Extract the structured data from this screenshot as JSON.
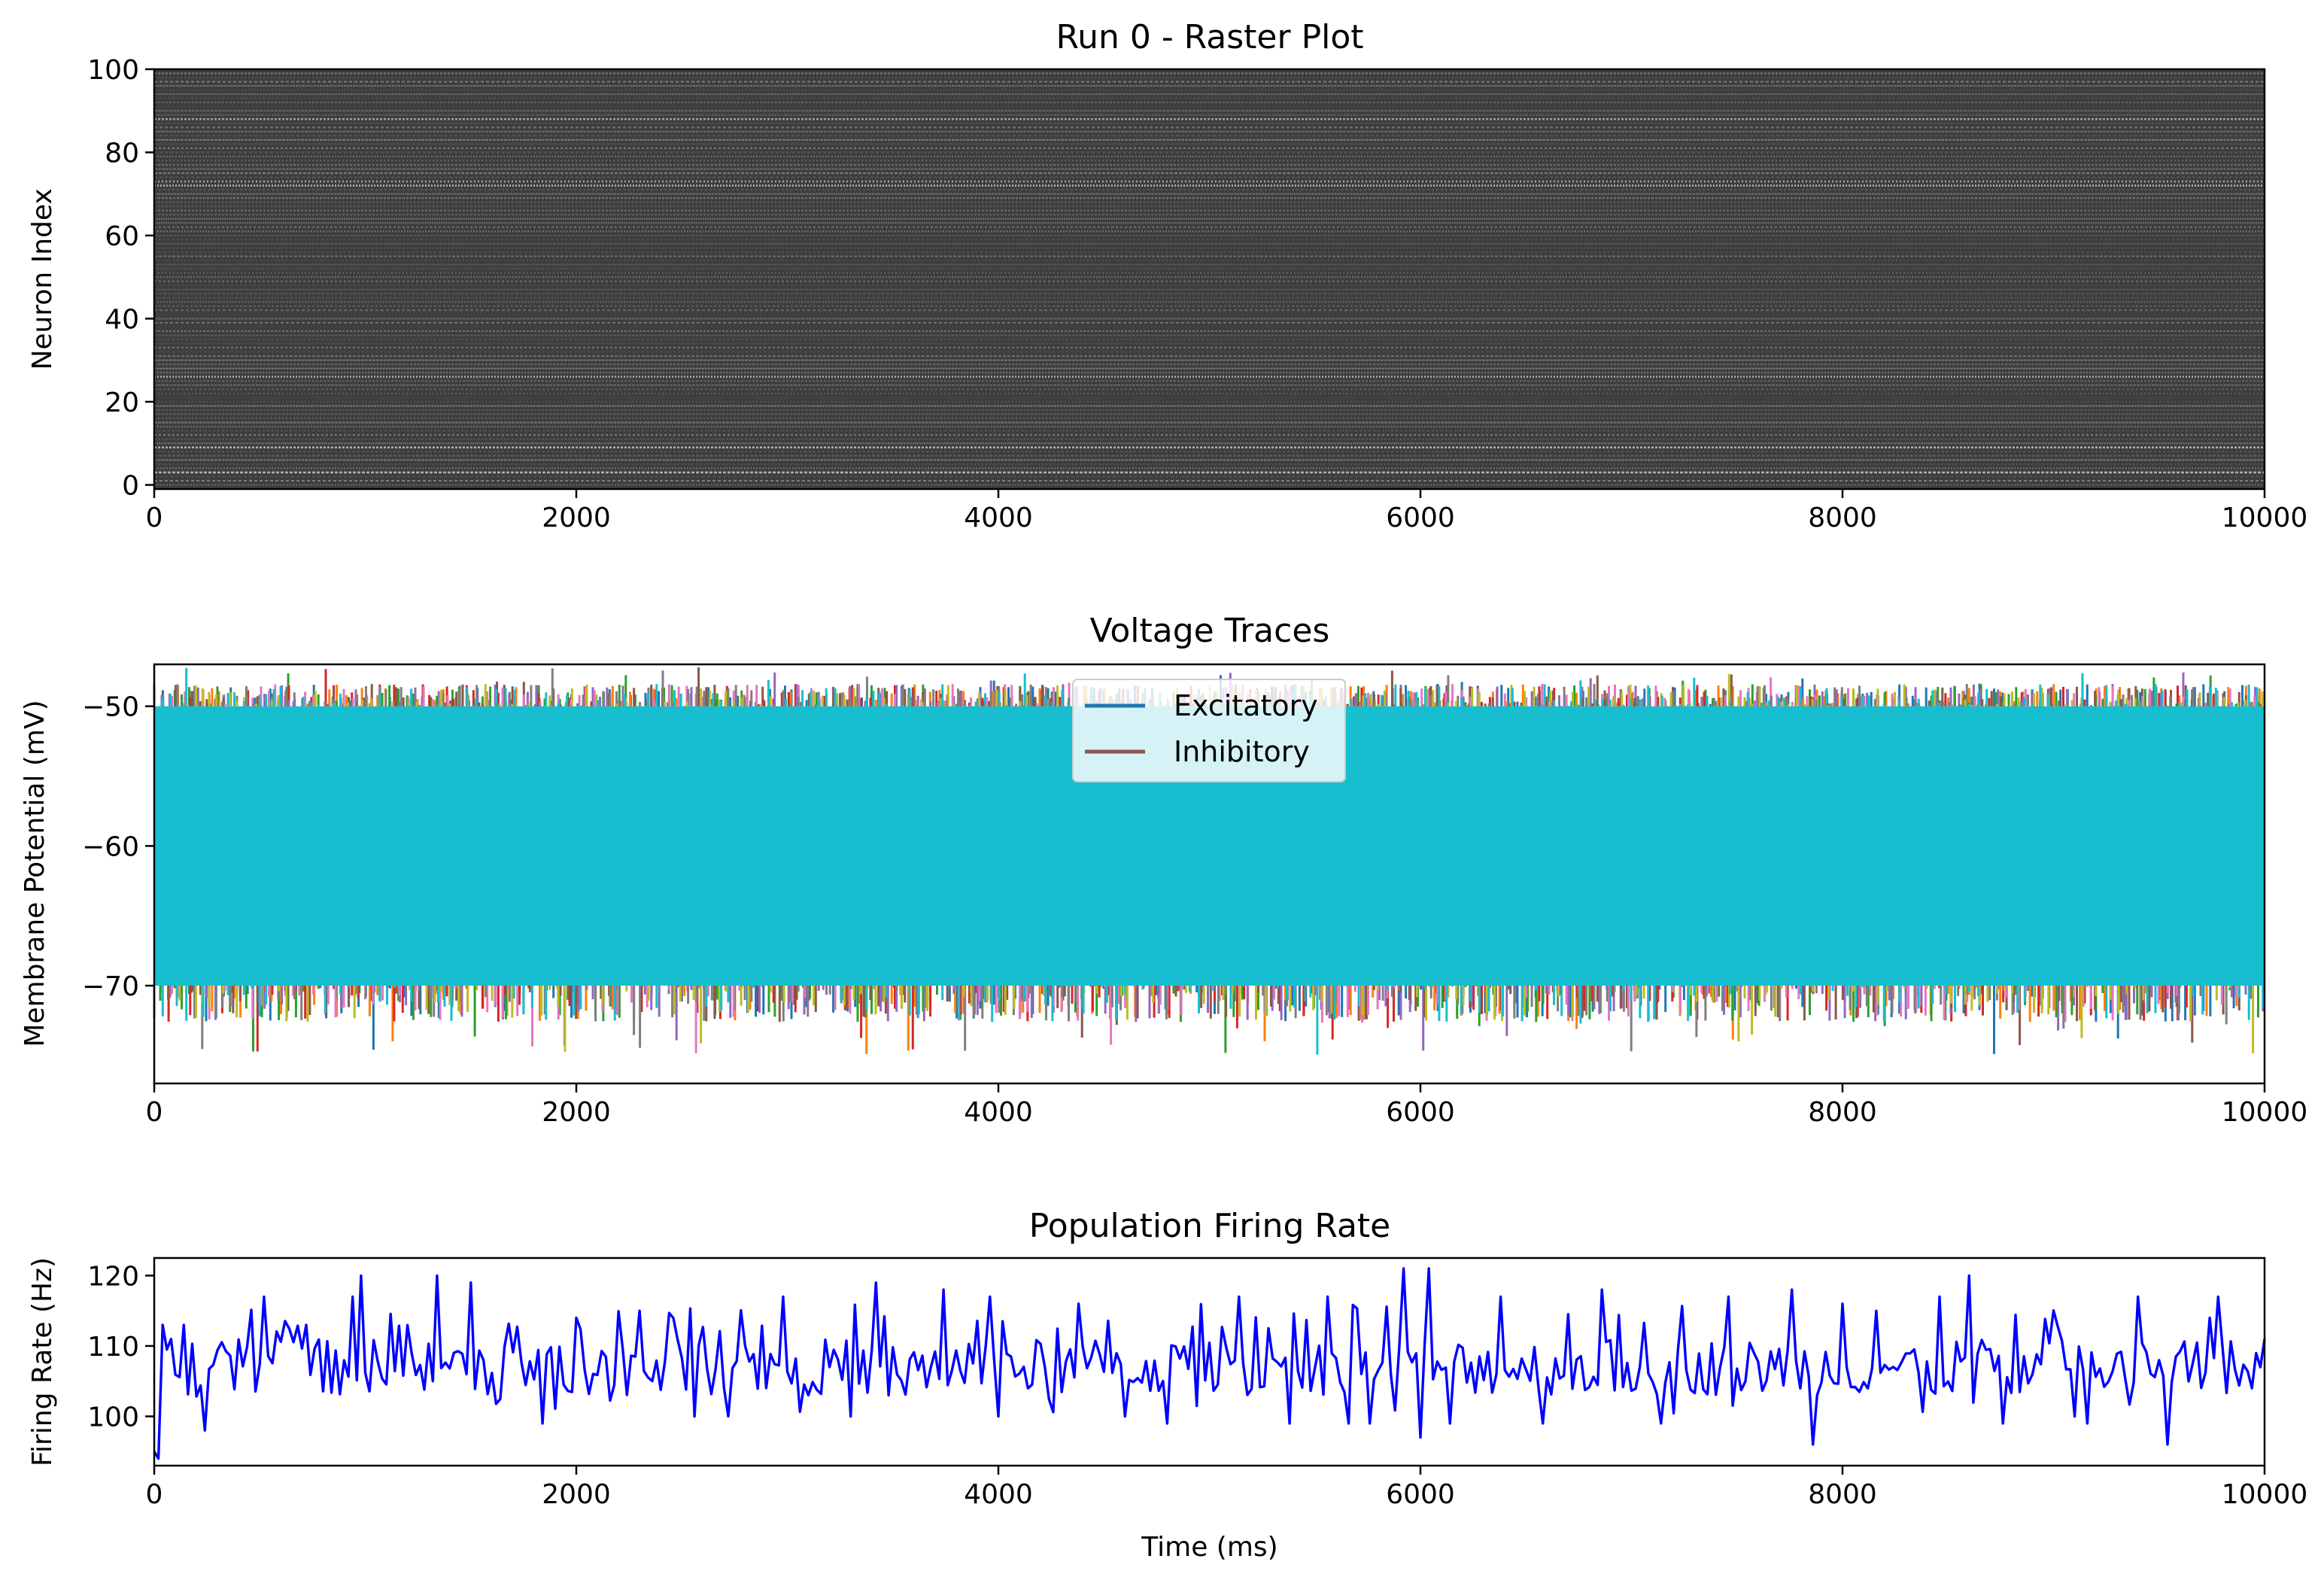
{
  "chart_data": [
    {
      "type": "scatter",
      "title": "Run 0 - Raster Plot",
      "xlabel": "",
      "ylabel": "Neuron Index",
      "xlim": [
        0,
        10000
      ],
      "ylim": [
        -1,
        100
      ],
      "xticks": [
        "0",
        "2000",
        "4000",
        "6000",
        "8000",
        "10000"
      ],
      "yticks": [
        "0",
        "20",
        "40",
        "60",
        "80",
        "100"
      ],
      "neurons": 100,
      "marker_color": "#000000",
      "bright_rows": [
        3,
        9,
        26,
        72,
        73,
        88
      ]
    },
    {
      "type": "line",
      "title": "Voltage Traces",
      "xlabel": "",
      "ylabel": "Membrane Potential (mV)",
      "xlim": [
        0,
        10000
      ],
      "ylim": [
        -77,
        -47
      ],
      "xticks": [
        "0",
        "2000",
        "4000",
        "6000",
        "8000",
        "10000"
      ],
      "yticks": [
        "−50",
        "−60",
        "−70"
      ],
      "reset_mV": -70,
      "threshold_mV": -50,
      "legend": {
        "position": "upper center",
        "entries": [
          {
            "label": "Excitatory",
            "color": "#1f77b4"
          },
          {
            "label": "Inhibitory",
            "color": "#8c564b"
          }
        ]
      },
      "series_colors": [
        "#1f77b4",
        "#ff7f0e",
        "#2ca02c",
        "#d62728",
        "#9467bd",
        "#8c564b",
        "#e377c2",
        "#7f7f7f",
        "#bcbd22",
        "#17becf"
      ],
      "fill_color": "#17becf"
    },
    {
      "type": "line",
      "title": "Population Firing Rate",
      "xlabel": "Time (ms)",
      "ylabel": "Firing Rate (Hz)",
      "xlim": [
        0,
        10000
      ],
      "ylim": [
        93,
        122.5
      ],
      "xticks": [
        "0",
        "2000",
        "4000",
        "6000",
        "8000",
        "10000"
      ],
      "yticks": [
        "100",
        "110",
        "120"
      ],
      "line_color": "#0000ff",
      "series": [
        {
          "x": 0,
          "y": 95
        },
        {
          "x": 20,
          "y": 94
        },
        {
          "x": 40,
          "y": 113
        },
        {
          "x": 140,
          "y": 113
        },
        {
          "x": 240,
          "y": 98
        },
        {
          "x": 520,
          "y": 117
        },
        {
          "x": 720,
          "y": 113
        },
        {
          "x": 940,
          "y": 117
        },
        {
          "x": 980,
          "y": 120
        },
        {
          "x": 1340,
          "y": 120
        },
        {
          "x": 1500,
          "y": 119
        },
        {
          "x": 1840,
          "y": 99
        },
        {
          "x": 2000,
          "y": 114
        },
        {
          "x": 2300,
          "y": 115
        },
        {
          "x": 2560,
          "y": 100
        },
        {
          "x": 2720,
          "y": 100
        },
        {
          "x": 2980,
          "y": 117
        },
        {
          "x": 3300,
          "y": 100
        },
        {
          "x": 3420,
          "y": 119
        },
        {
          "x": 3740,
          "y": 118
        },
        {
          "x": 3960,
          "y": 117
        },
        {
          "x": 4000,
          "y": 100
        },
        {
          "x": 4380,
          "y": 116
        },
        {
          "x": 4600,
          "y": 100
        },
        {
          "x": 4800,
          "y": 99
        },
        {
          "x": 5140,
          "y": 117
        },
        {
          "x": 5380,
          "y": 99
        },
        {
          "x": 5560,
          "y": 117
        },
        {
          "x": 5660,
          "y": 99
        },
        {
          "x": 5760,
          "y": 99
        },
        {
          "x": 5920,
          "y": 121
        },
        {
          "x": 6000,
          "y": 97
        },
        {
          "x": 6040,
          "y": 121
        },
        {
          "x": 6140,
          "y": 99
        },
        {
          "x": 6380,
          "y": 117
        },
        {
          "x": 6580,
          "y": 99
        },
        {
          "x": 6860,
          "y": 118
        },
        {
          "x": 7140,
          "y": 99
        },
        {
          "x": 7460,
          "y": 117
        },
        {
          "x": 7760,
          "y": 118
        },
        {
          "x": 7860,
          "y": 96
        },
        {
          "x": 8000,
          "y": 116
        },
        {
          "x": 8160,
          "y": 115
        },
        {
          "x": 8460,
          "y": 117
        },
        {
          "x": 8600,
          "y": 120
        },
        {
          "x": 8760,
          "y": 99
        },
        {
          "x": 9100,
          "y": 100
        },
        {
          "x": 9160,
          "y": 99
        },
        {
          "x": 9400,
          "y": 117
        },
        {
          "x": 9540,
          "y": 96
        },
        {
          "x": 9780,
          "y": 117
        },
        {
          "x": 9940,
          "y": 104
        },
        {
          "x": 10000,
          "y": 111
        }
      ]
    }
  ]
}
